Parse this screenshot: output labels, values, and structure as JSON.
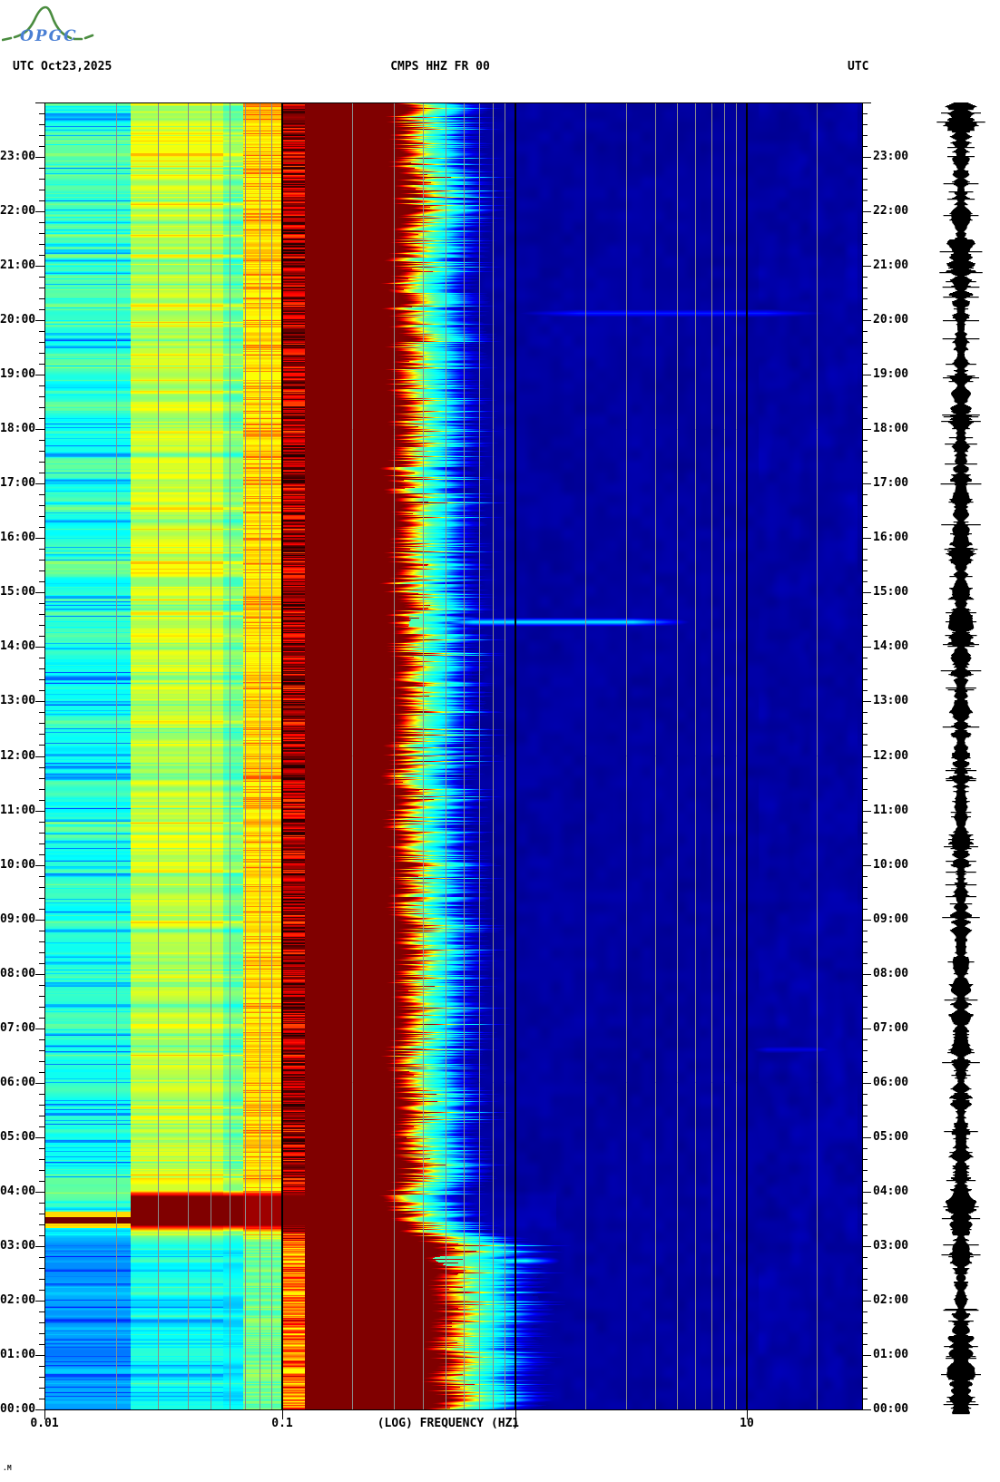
{
  "header": {
    "utc_left": "UTC",
    "date": "Oct23,2025",
    "title": "CMPS HHZ FR 00",
    "utc_right": "UTC"
  },
  "logo": {
    "text": "OPGC",
    "mountain_color": "#4a8c3f",
    "text_color": "#4a7fd4"
  },
  "corner_mark": ".M",
  "axes": {
    "x": {
      "label": "(LOG) FREQUENCY (HZ)",
      "scale": "log",
      "min_hz": 0.01,
      "max_hz": 25.5,
      "ticks": [
        {
          "f": 0.01,
          "label": "0.01"
        },
        {
          "f": 0.1,
          "label": "0.1"
        },
        {
          "f": 1,
          "label": "1"
        },
        {
          "f": 10,
          "label": "10"
        }
      ],
      "decade_line_color": "#000000",
      "minor_grid_color": "#8c8c8c"
    },
    "y": {
      "unit": "UTC",
      "minor_tick_minutes": 12,
      "labels_top_to_bottom": [
        "23:00",
        "22:00",
        "21:00",
        "20:00",
        "19:00",
        "18:00",
        "17:00",
        "16:00",
        "15:00",
        "14:00",
        "13:00",
        "12:00",
        "11:00",
        "10:00",
        "09:00",
        "08:00",
        "07:00",
        "06:00",
        "05:00",
        "04:00",
        "03:00",
        "02:00",
        "01:00",
        "00:00"
      ],
      "labels_both_sides": true
    }
  },
  "chart_data": {
    "type": "heatmap",
    "title": "CMPS HHZ FR 00",
    "xlabel": "(LOG) FREQUENCY (HZ)",
    "ylabel": "UTC time, 00:00 (bottom) to 24:00 (top)",
    "colormap": "jet",
    "x_range_hz": [
      0.01,
      25.5
    ],
    "y_range_hours": [
      0,
      24
    ],
    "background_color": "#ffffff",
    "saturated_color": "#800000",
    "quiet_color": "#0000a0",
    "bands": [
      {
        "name": "very-long-period",
        "f": [
          0.01,
          0.023
        ],
        "value_day": 0.42,
        "value_night": 0.27,
        "note": "cyan with blue stripes, bluer 00:00-03:00"
      },
      {
        "name": "long-period",
        "f": [
          0.023,
          0.056
        ],
        "value_day": 0.57,
        "value_night": 0.38,
        "note": "yellow-green striped"
      },
      {
        "name": "long-period-2",
        "f": [
          0.056,
          0.068
        ],
        "value_day": 0.49,
        "value_night": 0.36,
        "note": "cyan-green"
      },
      {
        "name": "pre-microseism",
        "f": [
          0.068,
          0.1
        ],
        "value_day": 0.64,
        "value_night": 0.47,
        "note": "yellow with orange/red stripes"
      },
      {
        "name": "microseism-edge",
        "f": [
          0.1,
          0.125
        ],
        "value_day": 0.92,
        "value_night": 0.74,
        "note": "red/near-black striped"
      },
      {
        "name": "microseism-peak",
        "f": [
          0.125,
          0.3
        ],
        "value_day": 1.0,
        "value_night": 1.0,
        "note": "saturated dark red"
      },
      {
        "name": "rolloff",
        "f": [
          0.3,
          0.8
        ],
        "note": "jagged gradient dark-red, red, orange, yellow, cyan, blue"
      },
      {
        "name": "high-frequency",
        "f": [
          0.8,
          25.5
        ],
        "value_day": 0.035,
        "value_night": 0.035,
        "note": "dark navy, faint mottling"
      }
    ],
    "events": [
      {
        "name": "strong-low-freq-event",
        "hours": [
          3.25,
          4.02
        ],
        "f": [
          0.01,
          0.3
        ],
        "value": 1.0,
        "note": "maroon/red block across low-frequency bands near 03:20-04:00"
      },
      {
        "name": "night-quiet",
        "hours": [
          0,
          3.1
        ],
        "note": "low-frequency bands shift to blue; rolloff edge shifts to higher frequency"
      }
    ],
    "streaks": [
      {
        "hour": 14.45,
        "f": [
          0.35,
          6
        ],
        "value": 0.38,
        "cut": true,
        "note": "cyan horizontal line"
      },
      {
        "hour": 2.72,
        "f": [
          0.3,
          1.6
        ],
        "value": 0.42,
        "cut": true,
        "note": "cyan horizontal line"
      },
      {
        "hour": 20.12,
        "f": [
          0.9,
          25
        ],
        "value": 0.16,
        "cut": false,
        "note": "faint bright-blue line"
      },
      {
        "hour": 6.6,
        "f": [
          10,
          25
        ],
        "value": 0.1,
        "cut": false,
        "note": "very faint line"
      }
    ],
    "trace": {
      "name": "seismogram-trace",
      "color": "#000000",
      "bursts": [
        {
          "hours": [
            3.2,
            4.05
          ]
        },
        {
          "hours": [
            0,
            1.35
          ]
        },
        {
          "hours": [
            23.5,
            24
          ]
        },
        {
          "hours": [
            20.9,
            21.5
          ]
        }
      ]
    }
  }
}
